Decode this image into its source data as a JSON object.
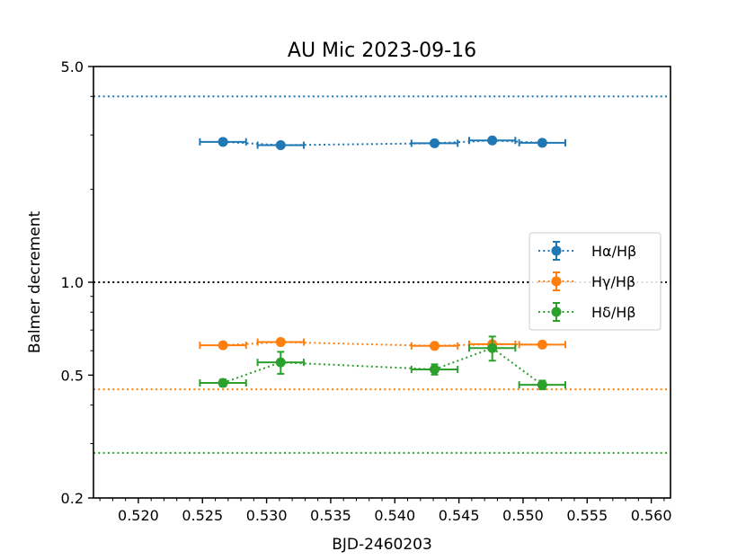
{
  "chart_data": {
    "type": "scatter",
    "title": "AU Mic 2023-09-16",
    "xlabel": "BJD-2460203",
    "ylabel": "Balmer decrement",
    "y_scale": "log",
    "xlim": [
      0.5165,
      0.5615
    ],
    "ylim": [
      0.2,
      5.0
    ],
    "x_ticks": [
      0.52,
      0.525,
      0.53,
      0.535,
      0.54,
      0.545,
      0.55,
      0.555,
      0.56
    ],
    "x_tick_labels": [
      "0.520",
      "0.525",
      "0.530",
      "0.535",
      "0.540",
      "0.545",
      "0.550",
      "0.555",
      "0.560"
    ],
    "y_ticks": [
      0.2,
      0.5,
      1.0,
      5.0
    ],
    "y_tick_labels": [
      "0.2",
      "0.5",
      "1.0",
      "5.0"
    ],
    "grid": false,
    "legend_position": "right",
    "series": [
      {
        "name": "Hα/Hβ",
        "color": "#1f77b4",
        "linestyle": "dotted",
        "points": [
          {
            "x": 0.5266,
            "y": 2.85,
            "xerr": 0.0018,
            "yerr": 0.05
          },
          {
            "x": 0.5311,
            "y": 2.78,
            "xerr": 0.0018,
            "yerr": 0.05
          },
          {
            "x": 0.5431,
            "y": 2.82,
            "xerr": 0.0018,
            "yerr": 0.05
          },
          {
            "x": 0.5476,
            "y": 2.88,
            "xerr": 0.0018,
            "yerr": 0.05
          },
          {
            "x": 0.5515,
            "y": 2.83,
            "xerr": 0.0018,
            "yerr": 0.05
          }
        ]
      },
      {
        "name": "Hγ/Hβ",
        "color": "#ff7f0e",
        "linestyle": "dotted",
        "points": [
          {
            "x": 0.5266,
            "y": 0.625,
            "xerr": 0.0018,
            "yerr": 0.012
          },
          {
            "x": 0.5311,
            "y": 0.64,
            "xerr": 0.0018,
            "yerr": 0.012
          },
          {
            "x": 0.5431,
            "y": 0.622,
            "xerr": 0.0018,
            "yerr": 0.012
          },
          {
            "x": 0.5476,
            "y": 0.63,
            "xerr": 0.0018,
            "yerr": 0.012
          },
          {
            "x": 0.5515,
            "y": 0.628,
            "xerr": 0.0018,
            "yerr": 0.012
          }
        ]
      },
      {
        "name": "Hδ/Hβ",
        "color": "#2ca02c",
        "linestyle": "dotted",
        "points": [
          {
            "x": 0.5266,
            "y": 0.472,
            "xerr": 0.0018,
            "yerr": 0.012
          },
          {
            "x": 0.5311,
            "y": 0.55,
            "xerr": 0.0018,
            "yerr": 0.045
          },
          {
            "x": 0.5431,
            "y": 0.522,
            "xerr": 0.0018,
            "yerr": 0.02
          },
          {
            "x": 0.5476,
            "y": 0.612,
            "xerr": 0.0018,
            "yerr": 0.055
          },
          {
            "x": 0.5515,
            "y": 0.465,
            "xerr": 0.0018,
            "yerr": 0.015
          }
        ]
      }
    ],
    "reference_lines": [
      {
        "y": 4.0,
        "color": "#1f77b4",
        "linestyle": "dotted"
      },
      {
        "y": 1.0,
        "color": "#000000",
        "linestyle": "dotted"
      },
      {
        "y": 0.45,
        "color": "#ff7f0e",
        "linestyle": "dotted"
      },
      {
        "y": 0.28,
        "color": "#2ca02c",
        "linestyle": "dotted"
      }
    ]
  }
}
